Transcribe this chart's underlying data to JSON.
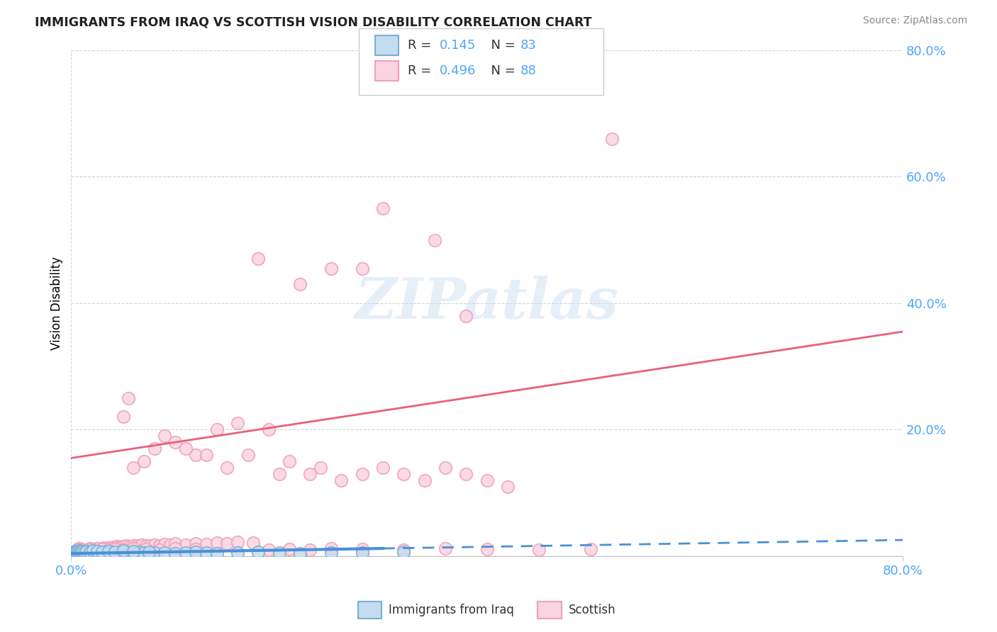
{
  "title": "IMMIGRANTS FROM IRAQ VS SCOTTISH VISION DISABILITY CORRELATION CHART",
  "source": "Source: ZipAtlas.com",
  "ylabel": "Vision Disability",
  "xlim": [
    0.0,
    0.8
  ],
  "ylim": [
    0.0,
    0.8
  ],
  "ytick_vals": [
    0.0,
    0.2,
    0.4,
    0.6,
    0.8
  ],
  "ytick_labels": [
    "",
    "20.0%",
    "40.0%",
    "60.0%",
    "80.0%"
  ],
  "xtick_vals": [
    0.0,
    0.8
  ],
  "xtick_labels": [
    "0.0%",
    "80.0%"
  ],
  "blue_edge": "#7bafd4",
  "blue_fill": "#c5dcf0",
  "pink_edge": "#f0a0b8",
  "pink_fill": "#fad4e0",
  "blue_line_color": "#4a90d9",
  "pink_line_color": "#e8607a",
  "tick_color": "#4da6ff",
  "watermark": "ZIPatlas",
  "legend_r1": "R = 0.145",
  "legend_n1": "N = 83",
  "legend_r2": "R = 0.496",
  "legend_n2": "N = 88",
  "iraq_x": [
    0.001,
    0.002,
    0.003,
    0.003,
    0.004,
    0.004,
    0.005,
    0.005,
    0.005,
    0.006,
    0.006,
    0.006,
    0.007,
    0.007,
    0.008,
    0.008,
    0.009,
    0.009,
    0.01,
    0.01,
    0.011,
    0.012,
    0.013,
    0.014,
    0.015,
    0.016,
    0.017,
    0.018,
    0.019,
    0.02,
    0.022,
    0.024,
    0.025,
    0.027,
    0.028,
    0.03,
    0.032,
    0.035,
    0.038,
    0.04,
    0.042,
    0.045,
    0.048,
    0.05,
    0.055,
    0.06,
    0.065,
    0.07,
    0.075,
    0.08,
    0.09,
    0.1,
    0.11,
    0.12,
    0.13,
    0.14,
    0.16,
    0.18,
    0.2,
    0.22,
    0.25,
    0.28,
    0.32,
    0.003,
    0.004,
    0.005,
    0.006,
    0.007,
    0.008,
    0.009,
    0.01,
    0.011,
    0.013,
    0.015,
    0.018,
    0.021,
    0.025,
    0.03,
    0.036,
    0.042,
    0.05,
    0.06,
    0.075
  ],
  "iraq_y": [
    0.003,
    0.004,
    0.003,
    0.005,
    0.004,
    0.006,
    0.003,
    0.005,
    0.007,
    0.004,
    0.006,
    0.008,
    0.004,
    0.006,
    0.004,
    0.007,
    0.004,
    0.006,
    0.003,
    0.006,
    0.005,
    0.004,
    0.006,
    0.005,
    0.004,
    0.006,
    0.005,
    0.004,
    0.006,
    0.005,
    0.005,
    0.004,
    0.006,
    0.005,
    0.004,
    0.005,
    0.006,
    0.005,
    0.004,
    0.006,
    0.005,
    0.004,
    0.006,
    0.005,
    0.004,
    0.005,
    0.006,
    0.005,
    0.004,
    0.005,
    0.005,
    0.004,
    0.005,
    0.006,
    0.005,
    0.004,
    0.005,
    0.006,
    0.005,
    0.004,
    0.005,
    0.005,
    0.006,
    0.007,
    0.008,
    0.007,
    0.008,
    0.007,
    0.009,
    0.008,
    0.007,
    0.008,
    0.007,
    0.008,
    0.007,
    0.009,
    0.008,
    0.007,
    0.008,
    0.007,
    0.009,
    0.008,
    0.007
  ],
  "scottish_x": [
    0.001,
    0.002,
    0.003,
    0.004,
    0.005,
    0.005,
    0.006,
    0.006,
    0.007,
    0.007,
    0.008,
    0.008,
    0.009,
    0.01,
    0.01,
    0.011,
    0.012,
    0.013,
    0.014,
    0.015,
    0.016,
    0.017,
    0.018,
    0.019,
    0.02,
    0.022,
    0.024,
    0.025,
    0.027,
    0.028,
    0.03,
    0.032,
    0.034,
    0.036,
    0.038,
    0.04,
    0.042,
    0.044,
    0.046,
    0.048,
    0.05,
    0.053,
    0.056,
    0.06,
    0.064,
    0.068,
    0.072,
    0.076,
    0.08,
    0.085,
    0.09,
    0.095,
    0.1,
    0.11,
    0.12,
    0.13,
    0.14,
    0.15,
    0.16,
    0.175,
    0.19,
    0.21,
    0.23,
    0.25,
    0.28,
    0.32,
    0.36,
    0.4,
    0.45,
    0.5,
    0.004,
    0.006,
    0.008,
    0.01,
    0.012,
    0.015,
    0.018,
    0.022,
    0.026,
    0.03,
    0.036,
    0.042,
    0.05,
    0.06,
    0.072,
    0.085,
    0.1,
    0.12
  ],
  "scottish_y": [
    0.005,
    0.006,
    0.007,
    0.006,
    0.005,
    0.008,
    0.006,
    0.01,
    0.007,
    0.012,
    0.008,
    0.011,
    0.008,
    0.007,
    0.01,
    0.009,
    0.008,
    0.01,
    0.009,
    0.008,
    0.01,
    0.009,
    0.012,
    0.011,
    0.01,
    0.011,
    0.01,
    0.012,
    0.011,
    0.01,
    0.012,
    0.013,
    0.011,
    0.013,
    0.012,
    0.014,
    0.013,
    0.015,
    0.014,
    0.013,
    0.015,
    0.016,
    0.015,
    0.017,
    0.016,
    0.018,
    0.017,
    0.016,
    0.018,
    0.017,
    0.019,
    0.018,
    0.02,
    0.018,
    0.02,
    0.019,
    0.021,
    0.02,
    0.022,
    0.021,
    0.01,
    0.011,
    0.01,
    0.012,
    0.011,
    0.01,
    0.012,
    0.011,
    0.01,
    0.011,
    0.008,
    0.01,
    0.009,
    0.011,
    0.01,
    0.009,
    0.011,
    0.01,
    0.012,
    0.011,
    0.01,
    0.011,
    0.01,
    0.012,
    0.011,
    0.01,
    0.012,
    0.011
  ],
  "scottish_outliers_x": [
    0.18,
    0.22,
    0.25,
    0.28,
    0.38,
    0.52,
    0.3,
    0.35
  ],
  "scottish_outliers_y": [
    0.47,
    0.43,
    0.455,
    0.455,
    0.38,
    0.66,
    0.55,
    0.5
  ],
  "scottish_mid_x": [
    0.08,
    0.1,
    0.12,
    0.14,
    0.16,
    0.2,
    0.24,
    0.28,
    0.32,
    0.36,
    0.4,
    0.06,
    0.07,
    0.09,
    0.11,
    0.13,
    0.15,
    0.17,
    0.19,
    0.21,
    0.23,
    0.26,
    0.3,
    0.34,
    0.38,
    0.42,
    0.05,
    0.055
  ],
  "scottish_mid_y": [
    0.17,
    0.18,
    0.16,
    0.2,
    0.21,
    0.13,
    0.14,
    0.13,
    0.13,
    0.14,
    0.12,
    0.14,
    0.15,
    0.19,
    0.17,
    0.16,
    0.14,
    0.16,
    0.2,
    0.15,
    0.13,
    0.12,
    0.14,
    0.12,
    0.13,
    0.11,
    0.22,
    0.25
  ],
  "iraq_blue_line_x": [
    0.0,
    0.3
  ],
  "iraq_blue_line_y": [
    0.004,
    0.012
  ],
  "scottish_pink_line_x0": 0.0,
  "scottish_pink_line_y0": 0.155,
  "scottish_pink_line_x1": 0.8,
  "scottish_pink_line_y1": 0.355
}
